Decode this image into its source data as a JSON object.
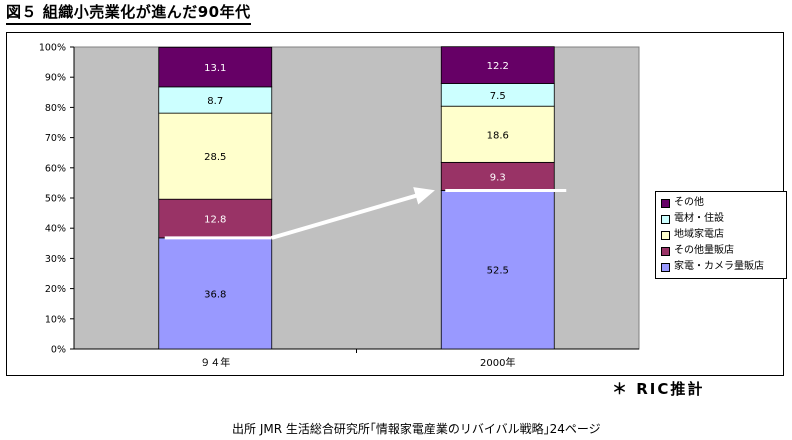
{
  "page": {
    "title": "図５ 組織小売業化が進んだ90年代",
    "note": "＊ RIC推計",
    "source": "出所 JMR 生活総合研究所｢情報家電産業のリバイバル戦略｣24ページ"
  },
  "chart_data": {
    "type": "bar",
    "stacked": true,
    "categories": [
      "９４年",
      "2000年"
    ],
    "ylim": [
      0,
      100
    ],
    "yticks": [
      "0%",
      "10%",
      "20%",
      "30%",
      "40%",
      "50%",
      "60%",
      "70%",
      "80%",
      "90%",
      "100%"
    ],
    "grid": false,
    "legend_position": "right",
    "series": [
      {
        "name": "家電・カメラ量販店",
        "color": "#9999ff",
        "values": [
          36.8,
          52.5
        ]
      },
      {
        "name": "その他量販店",
        "color": "#993366",
        "values": [
          12.8,
          9.3
        ]
      },
      {
        "name": "地域家電店",
        "color": "#ffffcc",
        "values": [
          28.5,
          18.6
        ]
      },
      {
        "name": "電材・住設",
        "color": "#ccffff",
        "values": [
          8.7,
          7.5
        ]
      },
      {
        "name": "その他",
        "color": "#660066",
        "values": [
          13.1,
          12.2
        ]
      }
    ],
    "plot_background": "#c0c0c0",
    "annotation": "white arrow from 94年 top of 家電・カメラ量販店 to 2000年 top of 家電・カメラ量販店"
  }
}
